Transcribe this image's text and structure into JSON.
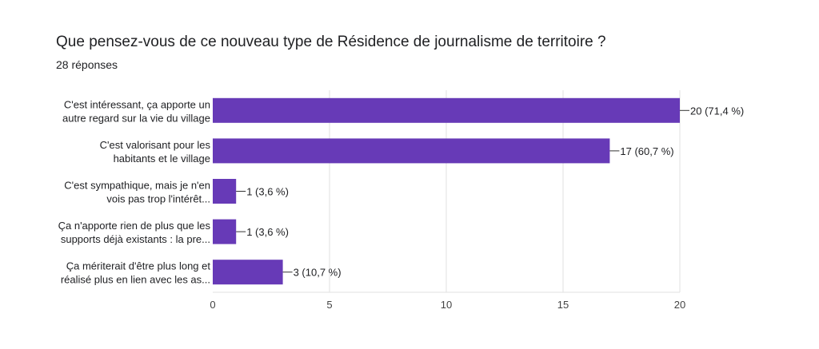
{
  "form": {
    "question": "Que pensez-vous de ce nouveau type de Résidence de journalisme de territoire ?",
    "responses": "28 réponses"
  },
  "colors": {
    "bar": "#673ab7",
    "grid": "#e0e0e0",
    "axis": "#333333"
  },
  "chart_data": {
    "type": "bar",
    "orientation": "horizontal",
    "title": "Que pensez-vous de ce nouveau type de Résidence de journalisme de territoire ?",
    "subtitle": "28 réponses",
    "categories": [
      [
        "C'est intéressant, ça apporte un",
        "autre regard sur la vie du village"
      ],
      [
        "C'est valorisant pour les",
        "habitants et le village"
      ],
      [
        "C'est sympathique, mais je n'en",
        "vois pas trop l'intérêt..."
      ],
      [
        "Ça n'apporte rien de plus que les",
        "supports déjà existants : la pre..."
      ],
      [
        "Ça mériterait d'être plus long et",
        "réalisé plus en lien avec les as..."
      ]
    ],
    "values": [
      20,
      17,
      1,
      1,
      3
    ],
    "value_labels": [
      "20 (71,4 %)",
      "17 (60,7 %)",
      "1 (3,6 %)",
      "1 (3,6 %)",
      "3 (10,7 %)"
    ],
    "xlim": [
      0,
      20
    ],
    "xticks": [
      0,
      5,
      10,
      15,
      20
    ],
    "grid": true
  }
}
